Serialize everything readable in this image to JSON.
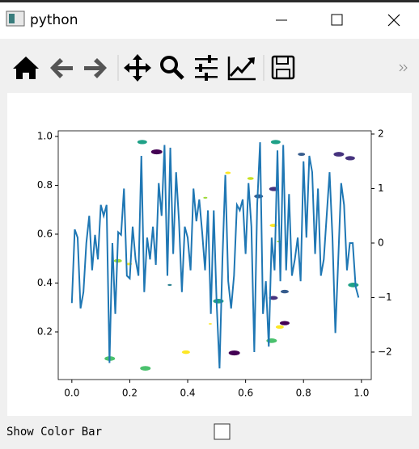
{
  "window": {
    "title": "python"
  },
  "controls": {
    "checkbox_label": "Show Color Bar"
  },
  "chart_data": {
    "type": "scatter",
    "xlim": [
      -0.047,
      1.034
    ],
    "ylim": [
      0.005,
      1.023
    ],
    "y2lim": [
      -2.504,
      2.059
    ],
    "xticks": [
      {
        "value": 0,
        "label": "0.0"
      },
      0.2,
      0.4,
      0.6,
      0.8,
      {
        "value": 1,
        "label": "1.0"
      }
    ],
    "yticks": [
      0.2,
      0.4,
      0.6,
      0.8,
      {
        "value": 1,
        "label": "1.0"
      }
    ],
    "y2ticks": [
      {
        "value": -2,
        "label": "−2"
      },
      {
        "value": -1,
        "label": "−1"
      },
      0,
      1,
      2
    ],
    "series": [
      {
        "type": "scatter",
        "x": [
          0.243,
          0.293,
          0.704,
          0.793,
          0.922,
          0.961,
          0.539,
          0.617,
          0.461,
          0.645,
          0.698,
          0.696,
          0.715,
          0.159,
          0.198,
          0.338,
          0.506,
          0.696,
          0.735,
          0.972,
          0.735,
          0.718,
          0.478,
          0.131,
          0.394,
          0.561,
          0.69,
          0.254
        ],
        "values": [
          0.977,
          0.937,
          0.977,
          0.927,
          0.927,
          0.911,
          0.851,
          0.828,
          0.749,
          0.755,
          0.785,
          0.636,
          0.57,
          0.491,
          0.478,
          0.392,
          0.326,
          0.339,
          0.365,
          0.392,
          0.236,
          0.22,
          0.233,
          0.091,
          0.117,
          0.114,
          0.164,
          0.051
        ],
        "sizes": [
          12,
          14,
          12,
          9,
          13,
          12,
          7,
          8,
          5,
          11,
          12,
          9,
          5,
          10,
          7,
          5,
          13,
          11,
          10,
          13,
          12,
          10,
          4,
          13,
          10,
          14,
          13,
          13
        ],
        "colors": [
          "#1fa187",
          "#440154",
          "#1fa187",
          "#365c8d",
          "#46337e",
          "#46337e",
          "#fde725",
          "#c8e020",
          "#9fda3a",
          "#365c8d",
          "#46337e",
          "#fde725",
          "#9fda3a",
          "#9fda3a",
          "#fde725",
          "#277f8e",
          "#1fa187",
          "#46337e",
          "#365c8d",
          "#1fa187",
          "#440154",
          "#fde725",
          "#fde725",
          "#4ac16d",
          "#fde725",
          "#440154",
          "#4ac16d",
          "#4ac16d"
        ]
      },
      {
        "type": "line",
        "axis": "y2",
        "color": "#1f77b4",
        "x": [
          0,
          0.01,
          0.02,
          0.03,
          0.04,
          0.05,
          0.06,
          0.07,
          0.08,
          0.09,
          0.1,
          0.11,
          0.12,
          0.13,
          0.14,
          0.15,
          0.16,
          0.17,
          0.18,
          0.19,
          0.2,
          0.21,
          0.22,
          0.23,
          0.24,
          0.25,
          0.26,
          0.27,
          0.28,
          0.29,
          0.3,
          0.31,
          0.32,
          0.33,
          0.34,
          0.35,
          0.36,
          0.37,
          0.38,
          0.39,
          0.4,
          0.41,
          0.42,
          0.43,
          0.44,
          0.45,
          0.46,
          0.47,
          0.48,
          0.49,
          0.5,
          0.51,
          0.52,
          0.53,
          0.54,
          0.55,
          0.56,
          0.57,
          0.58,
          0.59,
          0.6,
          0.61,
          0.62,
          0.63,
          0.64,
          0.65,
          0.66,
          0.67,
          0.68,
          0.69,
          0.7,
          0.71,
          0.72,
          0.73,
          0.74,
          0.75,
          0.76,
          0.77,
          0.78,
          0.79,
          0.8,
          0.81,
          0.82,
          0.83,
          0.84,
          0.85,
          0.86,
          0.87,
          0.88,
          0.89,
          0.9,
          0.91,
          0.92,
          0.93,
          0.94,
          0.95,
          0.96,
          0.97,
          0.98,
          0.99
        ],
        "values": [
          -1.1,
          0.25,
          0.1,
          -1.2,
          -0.9,
          0.0,
          0.5,
          -0.5,
          0.15,
          -0.3,
          0.7,
          0.5,
          0.7,
          -2.2,
          0.0,
          -1.3,
          0.2,
          0.15,
          1.0,
          -0.6,
          -0.65,
          0.3,
          -0.3,
          -0.6,
          1.6,
          -0.9,
          0.1,
          -0.3,
          0.3,
          -0.4,
          1.1,
          0.5,
          1.8,
          -0.6,
          1.75,
          -0.2,
          1.3,
          0.4,
          -0.9,
          0.3,
          0.1,
          -0.5,
          1.0,
          0.4,
          0.8,
          0.2,
          -0.5,
          0.6,
          -1.3,
          0.6,
          -1.1,
          -2.3,
          -0.3,
          1.25,
          -0.7,
          -1.2,
          -0.6,
          0.7,
          0.6,
          0.8,
          -0.2,
          1.1,
          0.3,
          -2.0,
          0.7,
          1.85,
          -1.3,
          -0.7,
          -1.9,
          0.1,
          -0.5,
          1.7,
          -0.7,
          1.8,
          -0.5,
          0.9,
          -0.6,
          -0.3,
          0.1,
          -0.7,
          1.5,
          0.1,
          1.6,
          1.3,
          -0.2,
          1.0,
          -0.6,
          -0.3,
          0.5,
          1.3,
          0.1,
          -1.65,
          -0.3,
          1.1,
          0.7,
          -0.5,
          0.0,
          0.0,
          -0.8,
          -1.0
        ]
      }
    ]
  }
}
